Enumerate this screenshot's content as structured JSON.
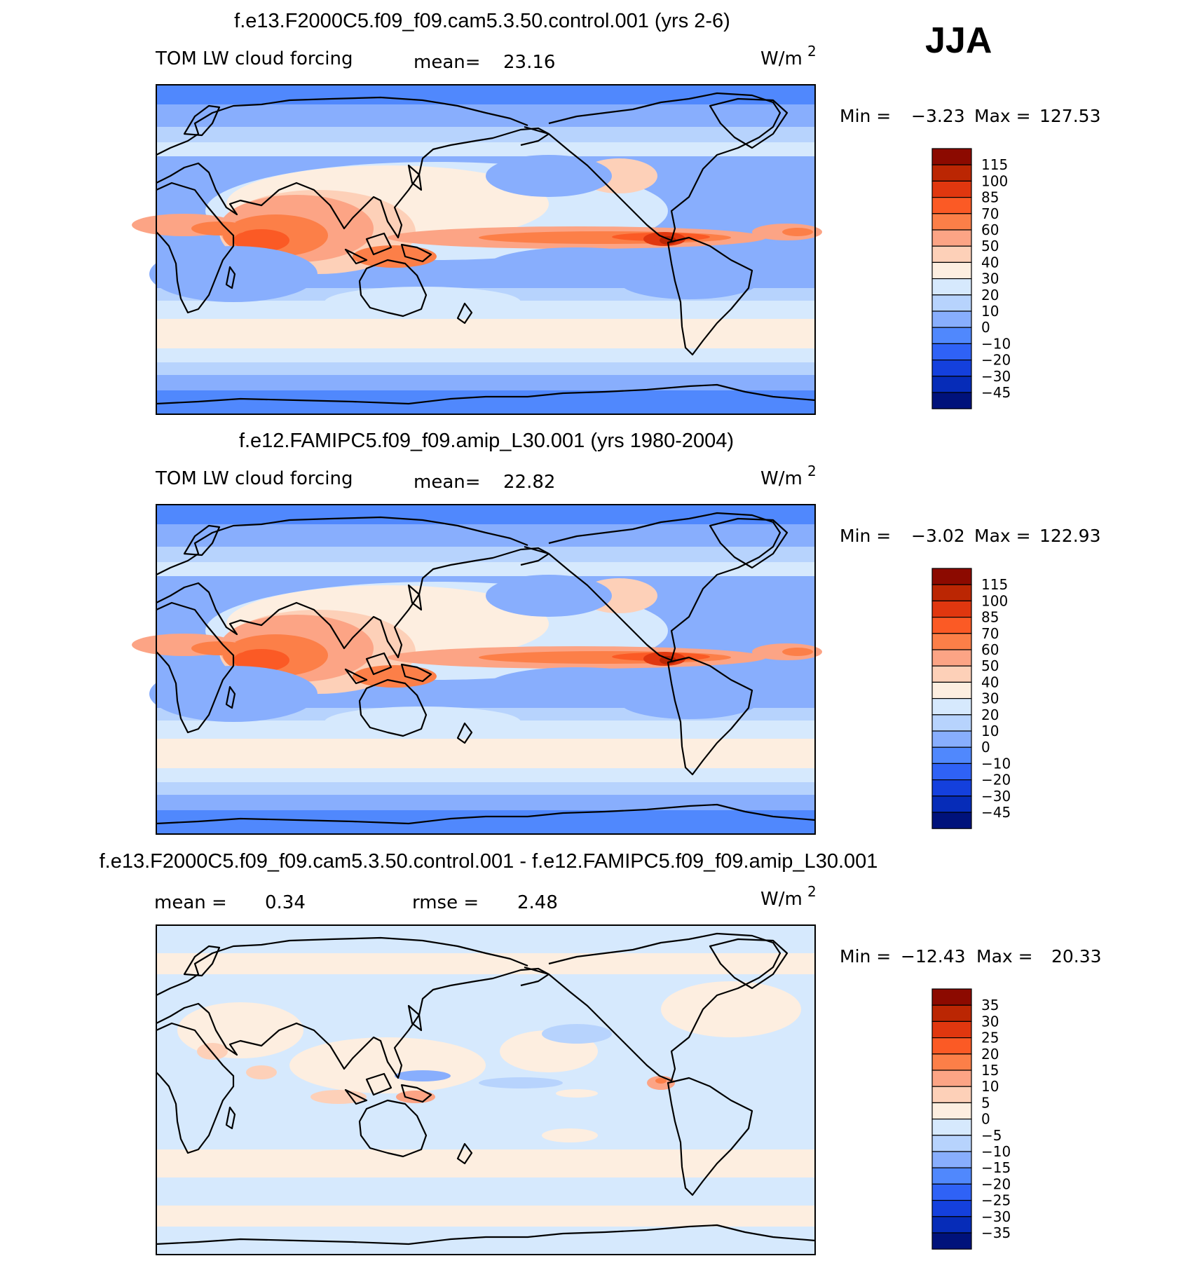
{
  "season": "JJA",
  "units_label": "W/m",
  "units_exp": "2",
  "panels": [
    {
      "title": "f.e13.F2000C5.f09_f09.cam5.3.50.control.001 (yrs 2-6)",
      "variable": "TOM LW cloud forcing",
      "stat1_label": "mean=",
      "stat1_value": "23.16",
      "min_label": "Min =",
      "min_value": "−3.23",
      "max_label": "Max =",
      "max_value": "127.53"
    },
    {
      "title": "f.e12.FAMIPC5.f09_f09.amip_L30.001 (yrs 1980-2004)",
      "variable": "TOM LW cloud forcing",
      "stat1_label": "mean=",
      "stat1_value": "22.82",
      "min_label": "Min =",
      "min_value": "−3.02",
      "max_label": "Max =",
      "max_value": "122.93"
    },
    {
      "title": "f.e13.F2000C5.f09_f09.cam5.3.50.control.001 - f.e12.FAMIPC5.f09_f09.amip_L30.001",
      "variable": "",
      "stat1_label": "mean =",
      "stat1_value": "0.34",
      "stat2_label": "rmse =",
      "stat2_value": "2.48",
      "min_label": "Min =",
      "min_value": "−12.43",
      "max_label": "Max =",
      "max_value": "20.33"
    }
  ],
  "chart_data": [
    {
      "type": "heatmap",
      "title": "f.e13.F2000C5.f09_f09.cam5.3.50.control.001 (yrs 2-6)",
      "variable": "TOM LW cloud forcing",
      "units": "W/m2",
      "mean": 23.16,
      "min": -3.23,
      "max": 127.53,
      "colorbar_levels": [
        "115",
        "100",
        "85",
        "70",
        "60",
        "50",
        "40",
        "30",
        "20",
        "10",
        "0",
        "−10",
        "−20",
        "−30",
        "−45"
      ],
      "colorbar_colors": [
        "#8c0a00",
        "#bb2603",
        "#e0370f",
        "#fb5a25",
        "#fc7f48",
        "#fca485",
        "#fdd0b8",
        "#fdeee0",
        "#d6e9fd",
        "#b7d3fd",
        "#88aefd",
        "#5088fd",
        "#2f62f6",
        "#1440dd",
        "#062cb8",
        "#00127b"
      ]
    },
    {
      "type": "heatmap",
      "title": "f.e12.FAMIPC5.f09_f09.amip_L30.001 (yrs 1980-2004)",
      "variable": "TOM LW cloud forcing",
      "units": "W/m2",
      "mean": 22.82,
      "min": -3.02,
      "max": 122.93,
      "colorbar_levels": [
        "115",
        "100",
        "85",
        "70",
        "60",
        "50",
        "40",
        "30",
        "20",
        "10",
        "0",
        "−10",
        "−20",
        "−30",
        "−45"
      ],
      "colorbar_colors": [
        "#8c0a00",
        "#bb2603",
        "#e0370f",
        "#fb5a25",
        "#fc7f48",
        "#fca485",
        "#fdd0b8",
        "#fdeee0",
        "#d6e9fd",
        "#b7d3fd",
        "#88aefd",
        "#5088fd",
        "#2f62f6",
        "#1440dd",
        "#062cb8",
        "#00127b"
      ]
    },
    {
      "type": "heatmap",
      "title": "f.e13.F2000C5.f09_f09.cam5.3.50.control.001 - f.e12.FAMIPC5.f09_f09.amip_L30.001",
      "units": "W/m2",
      "mean": 0.34,
      "rmse": 2.48,
      "min": -12.43,
      "max": 20.33,
      "colorbar_levels": [
        "35",
        "30",
        "25",
        "20",
        "15",
        "10",
        "5",
        "0",
        "−5",
        "−10",
        "−15",
        "−20",
        "−25",
        "−30",
        "−35"
      ],
      "colorbar_colors": [
        "#8c0a00",
        "#bb2603",
        "#e0370f",
        "#fb5a25",
        "#fc7f48",
        "#fca485",
        "#fdd0b8",
        "#fdeee0",
        "#d6e9fd",
        "#b7d3fd",
        "#88aefd",
        "#5088fd",
        "#2f62f6",
        "#1440dd",
        "#062cb8",
        "#00127b"
      ]
    }
  ]
}
